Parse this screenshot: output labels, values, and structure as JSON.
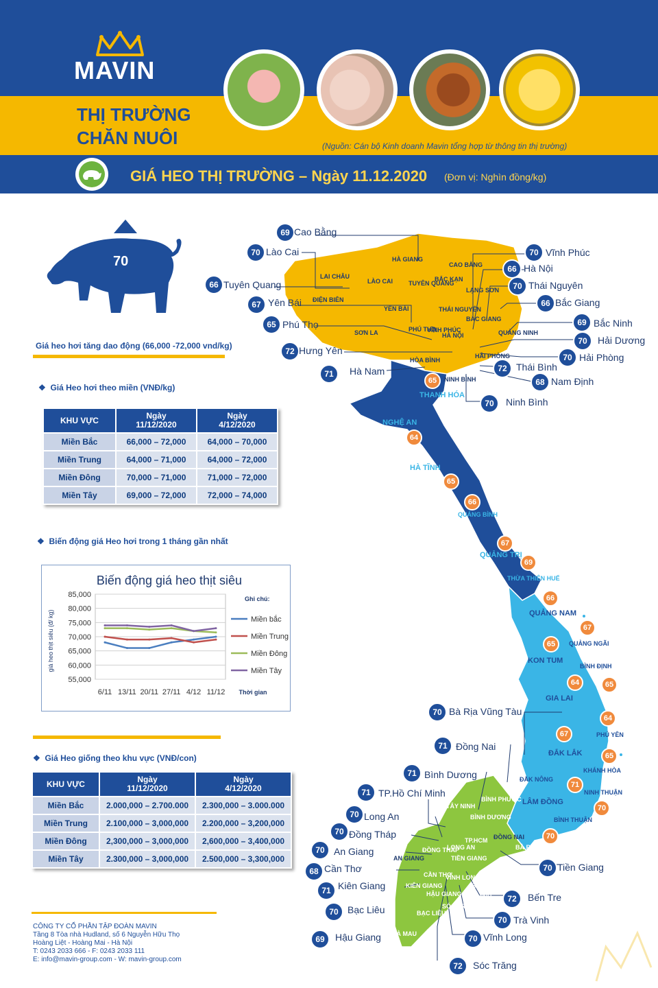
{
  "header": {
    "brand": "MAVIN",
    "title_line1": "THỊ TRƯỜNG",
    "title_line2": "CHĂN NUÔI",
    "source": "(Nguồn: Cán bộ Kinh doanh Mavin tổng hợp từ thông tin thị trường)",
    "banner_title": "GIÁ HEO THỊ TRƯỜNG – Ngày 11.12.2020",
    "banner_unit": "(Đơn vị: Nghìn đồng/kg)",
    "photos": [
      "pig-icon",
      "piglets-icon",
      "hen-icon",
      "ducklings-icon"
    ]
  },
  "summary": {
    "price": "70",
    "trend": "up",
    "note": "Giá heo hơi tăng dao động (66,000 -72,000 vnd/kg)"
  },
  "table1": {
    "title": "Giá Heo hơi theo miền (VNĐ/kg)",
    "headers": [
      "KHU VỰC",
      "Ngày\n11/12/2020",
      "Ngày\n4/12/2020"
    ],
    "rows": [
      [
        "Miền Bắc",
        "66,000 – 72,000",
        "64,000 – 70,000"
      ],
      [
        "Miền Trung",
        "64,000 – 71,000",
        "64,000 – 72,000"
      ],
      [
        "Miền Đông",
        "70,000 – 71,000",
        "71,000 – 72,000"
      ],
      [
        "Miền Tây",
        "69,000 – 72,000",
        "72,000 – 74,000"
      ]
    ]
  },
  "chart_section_title": "Biến động giá Heo hơi trong 1 tháng gần nhất",
  "chart_data": {
    "type": "line",
    "title": "Biến động giá heo thịt siêu",
    "ylabel": "giá heo thịt siêu (đ/ kg)",
    "xlabel": "Thời gian",
    "legend_title": "Ghi chú:",
    "legend_position": "right",
    "categories": [
      "6/11",
      "13/11",
      "20/11",
      "27/11",
      "4/12",
      "11/12"
    ],
    "ylim": [
      55000,
      85000
    ],
    "yticks": [
      "85,000",
      "80,000",
      "75,000",
      "70,000",
      "65,000",
      "60,000",
      "55,000"
    ],
    "grid": true,
    "series": [
      {
        "name": "Miền bắc",
        "color": "#4a7ebf",
        "values": [
          68000,
          66000,
          66000,
          68000,
          69000,
          70000
        ]
      },
      {
        "name": "Miền Trung",
        "color": "#c0504d",
        "values": [
          70000,
          69000,
          69000,
          69500,
          68000,
          69000
        ]
      },
      {
        "name": "Miền Đông",
        "color": "#9bbb59",
        "values": [
          73000,
          73000,
          72500,
          73000,
          72000,
          71500
        ]
      },
      {
        "name": "Miền Tây",
        "color": "#8064a2",
        "values": [
          74000,
          74000,
          73500,
          74000,
          72000,
          73000
        ]
      }
    ]
  },
  "table2": {
    "title": "Giá Heo giống theo khu vực (VNĐ/con)",
    "headers": [
      "KHU VỰC",
      "Ngày\n11/12/2020",
      "Ngày\n4/12/2020"
    ],
    "rows": [
      [
        "Miền Bắc",
        "2.000,000 – 2.700.000",
        "2.300,000 – 3.000.000"
      ],
      [
        "Miền Trung",
        "2.100,000 – 3,000,000",
        "2.200,000 – 3,200,000"
      ],
      [
        "Miền Đông",
        "2,300,000 – 3,000,000",
        "2,600,000 – 3,400,000"
      ],
      [
        "Miền Tây",
        "2.300,000 – 3,000,000",
        "2.500,000 – 3,300,000"
      ]
    ]
  },
  "footer": {
    "company": "CÔNG TY CỔ PHẦN TẬP ĐOÀN MAVIN",
    "address1": "Tầng 8 Tòa nhà Hudland, số 6 Nguyễn Hữu Thọ",
    "address2": "Hoàng Liệt - Hoàng Mai - Hà Nội",
    "phone": "T: 0243 2033 666 - F: 0243 2033 111",
    "contact": "E: info@mavin-group.com -  W: mavin-group.com"
  },
  "map": {
    "north_labels": [
      {
        "price": "69",
        "name": "Cao Bằng"
      },
      {
        "price": "70",
        "name": "Lào Cai"
      },
      {
        "price": "66",
        "name": "Tuyên Quang"
      },
      {
        "price": "67",
        "name": "Yên Bái"
      },
      {
        "price": "65",
        "name": "Phú Thọ"
      },
      {
        "price": "72",
        "name": "Hưng Yên"
      },
      {
        "price": "71",
        "name": "Hà Nam"
      },
      {
        "price": "70",
        "name": "Vĩnh Phúc"
      },
      {
        "price": "66",
        "name": "Hà Nội"
      },
      {
        "price": "70",
        "name": "Thái Nguyên"
      },
      {
        "price": "66",
        "name": "Bắc Giang"
      },
      {
        "price": "69",
        "name": "Bắc Ninh"
      },
      {
        "price": "70",
        "name": "Hải Dương"
      },
      {
        "price": "70",
        "name": "Hải Phòng"
      },
      {
        "price": "72",
        "name": "Thái Bình"
      },
      {
        "price": "68",
        "name": "Nam Định"
      },
      {
        "price": "70",
        "name": "Ninh Bình"
      }
    ],
    "central_badges": [
      "65",
      "64",
      "65",
      "66",
      "67",
      "69",
      "66",
      "67",
      "65",
      "64",
      "65",
      "67",
      "64",
      "65",
      "71",
      "70",
      "70"
    ],
    "south_labels": [
      {
        "price": "70",
        "name": "Bà Rịa Vũng Tàu"
      },
      {
        "price": "71",
        "name": "Đồng Nai"
      },
      {
        "price": "71",
        "name": "Bình Dương"
      },
      {
        "price": "71",
        "name": "TP.Hồ Chí Minh"
      },
      {
        "price": "70",
        "name": "Long An"
      },
      {
        "price": "70",
        "name": "Đồng Tháp"
      },
      {
        "price": "70",
        "name": "An Giang"
      },
      {
        "price": "68",
        "name": "Cần Thơ"
      },
      {
        "price": "71",
        "name": "Kiên Giang"
      },
      {
        "price": "70",
        "name": "Bạc Liêu"
      },
      {
        "price": "69",
        "name": "Hậu Giang"
      },
      {
        "price": "70",
        "name": "Tiền Giang"
      },
      {
        "price": "72",
        "name": "Bến Tre"
      },
      {
        "price": "70",
        "name": "Trà Vinh"
      },
      {
        "price": "70",
        "name": "Vĩnh Long"
      },
      {
        "price": "72",
        "name": "Sóc Trăng"
      }
    ],
    "provinces_north": [
      "HÀ GIANG",
      "CAO BẰNG",
      "LAI CHÂU",
      "LÀO CAI",
      "TUYÊN QUANG",
      "BẮC KẠN",
      "LẠNG SƠN",
      "ĐIỆN BIÊN",
      "YÊN BÁI",
      "THÁI NGUYÊN",
      "SƠN LA",
      "PHÚ THỌ",
      "VĨNH PHÚC",
      "BẮC GIANG",
      "QUẢNG NINH",
      "HÀ NỘI",
      "HÒA BÌNH",
      "HẢI PHÒNG",
      "NINH BÌNH"
    ],
    "provinces_central": [
      "THANH HÓA",
      "NGHỆ AN",
      "HÀ TĨNH",
      "QUẢNG BÌNH",
      "QUẢNG TRỊ",
      "THỪA THIÊN HUẾ",
      "QUẢNG NAM",
      "QUẢNG NGÃI",
      "KON TUM",
      "BÌNH ĐỊNH",
      "GIA LAI",
      "PHÚ YÊN",
      "ĐẮK LẮK",
      "KHÁNH HÒA",
      "ĐẮK NÔNG",
      "LÂM ĐỒNG",
      "NINH THUẬN",
      "BÌNH THUẬN"
    ],
    "provinces_south": [
      "BÌNH PHƯỚC",
      "TÂY NINH",
      "BÌNH DƯƠNG",
      "ĐỒNG NAI",
      "TP.HCM",
      "BÀ RỊA VŨNG TÀU",
      "LONG AN",
      "ĐỒNG THÁP",
      "AN GIANG",
      "TIỀN GIANG",
      "CẦN THƠ",
      "KIÊN GIANG",
      "VĨNH LONG",
      "BẾN TRE",
      "HẬU GIANG",
      "TRÀ VINH",
      "SÓC TRĂNG",
      "BẠC LIÊU",
      "CÀ MAU"
    ]
  }
}
